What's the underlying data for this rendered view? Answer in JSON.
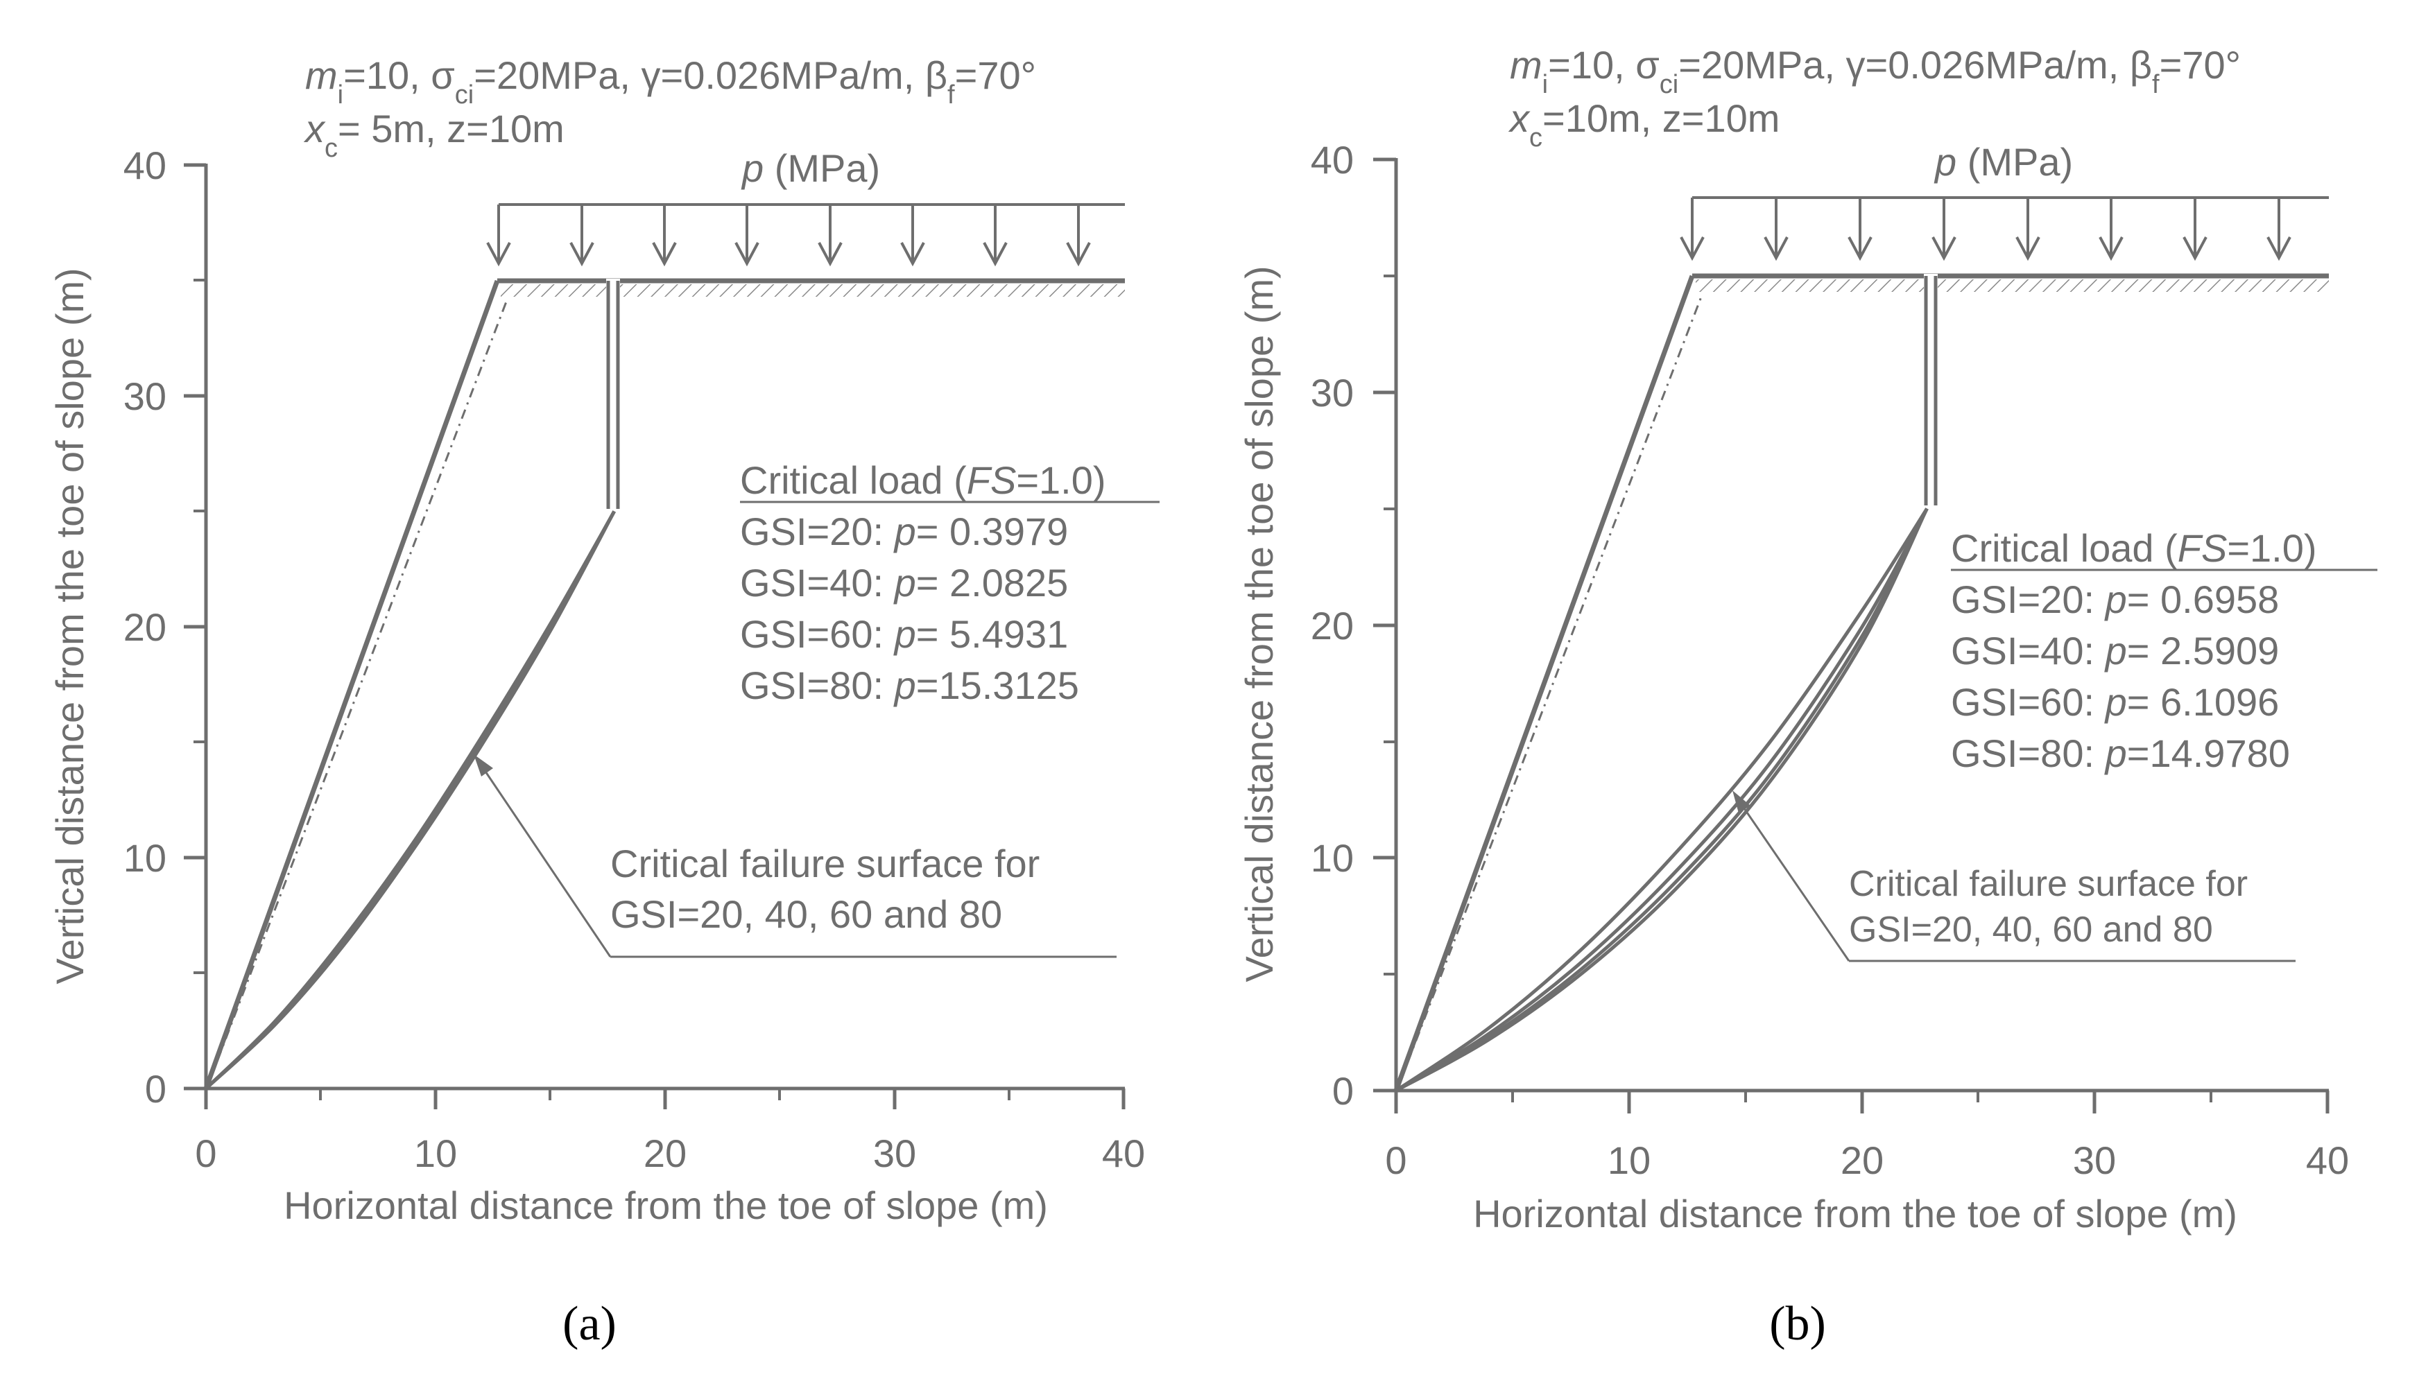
{
  "colors": {
    "ink": "#6e6e6e",
    "label": "#000000",
    "background": "#ffffff"
  },
  "chart_data": [
    {
      "panel_label": "(a)",
      "type": "line",
      "params_line1": {
        "m_i": "10",
        "sigma_ci": "20MPa",
        "gamma": "0.026MPa/m",
        "beta_f": "70°"
      },
      "params_line2": {
        "x_c": "5m",
        "z": "10m"
      },
      "load_label": "p (MPa)",
      "xlabel": "Horizontal distance from the toe of slope (m)",
      "ylabel": "Vertical distance from the toe of slope (m)",
      "xlim": [
        0,
        40
      ],
      "ylim": [
        0,
        40
      ],
      "xticks": [
        "0",
        "10",
        "20",
        "30",
        "40"
      ],
      "yticks": [
        "0",
        "10",
        "20",
        "30",
        "40"
      ],
      "slope": {
        "toe": [
          0,
          0
        ],
        "crest": [
          12.7,
          35
        ],
        "ground_end_x": 40
      },
      "crack": {
        "x": 17.8,
        "top_y": 35,
        "bottom_y": 25
      },
      "load_arrows_x": [
        12.7,
        16.3,
        19.9,
        23.5,
        27.1,
        30.7,
        34.3,
        37.9
      ],
      "load_line_y": 38.2,
      "critical_load": {
        "title": "Critical load (FS=1.0)",
        "rows": [
          {
            "gsi": "20",
            "p": "0.3979"
          },
          {
            "gsi": "40",
            "p": "2.0825"
          },
          {
            "gsi": "60",
            "p": "5.4931"
          },
          {
            "gsi": "80",
            "p": "15.3125"
          }
        ]
      },
      "annotation": {
        "line1": "Critical failure surface for",
        "line2": "GSI=20, 40, 60 and 80",
        "arrow_tip": [
          11.8,
          14.2
        ]
      },
      "series": [
        {
          "name": "GSI=20",
          "x": [
            0,
            3,
            6,
            9,
            12,
            15,
            17.8
          ],
          "y": [
            0,
            2.9,
            6.5,
            10.6,
            15.2,
            20.1,
            25
          ]
        },
        {
          "name": "GSI=40",
          "x": [
            0,
            3,
            6,
            9,
            12,
            15,
            17.8
          ],
          "y": [
            0,
            2.85,
            6.4,
            10.5,
            15.05,
            20,
            25
          ]
        },
        {
          "name": "GSI=60",
          "x": [
            0,
            3,
            6,
            9,
            12,
            15,
            17.8
          ],
          "y": [
            0,
            2.8,
            6.3,
            10.4,
            14.95,
            19.9,
            25
          ]
        },
        {
          "name": "GSI=80",
          "x": [
            0,
            3,
            6,
            9,
            12,
            15,
            17.8
          ],
          "y": [
            0,
            2.75,
            6.2,
            10.3,
            14.85,
            19.8,
            25
          ]
        }
      ]
    },
    {
      "panel_label": "(b)",
      "type": "line",
      "params_line1": {
        "m_i": "10",
        "sigma_ci": "20MPa",
        "gamma": "0.026MPa/m",
        "beta_f": "70°"
      },
      "params_line2": {
        "x_c": "10m",
        "z": "10m"
      },
      "load_label": "p (MPa)",
      "xlabel": "Horizontal distance from the toe of slope (m)",
      "ylabel": "Vertical distance from the toe of slope (m)",
      "xlim": [
        0,
        40
      ],
      "ylim": [
        0,
        40
      ],
      "xticks": [
        "0",
        "10",
        "20",
        "30",
        "40"
      ],
      "yticks": [
        "0",
        "10",
        "20",
        "30",
        "40"
      ],
      "slope": {
        "toe": [
          0,
          0
        ],
        "crest": [
          12.7,
          35
        ],
        "ground_end_x": 40
      },
      "crack": {
        "x": 22.8,
        "top_y": 35,
        "bottom_y": 25
      },
      "load_arrows_x": [
        12.7,
        16.3,
        19.9,
        23.5,
        27.1,
        30.7,
        34.3,
        37.9
      ],
      "load_line_y": 38.3,
      "critical_load": {
        "title": "Critical load (FS=1.0)",
        "rows": [
          {
            "gsi": "20",
            "p": "0.6958"
          },
          {
            "gsi": "40",
            "p": "2.5909"
          },
          {
            "gsi": "60",
            "p": "6.1096"
          },
          {
            "gsi": "80",
            "p": "14.9780"
          }
        ]
      },
      "annotation": {
        "line1": "Critical failure surface for",
        "line2": "GSI=20, 40, 60 and 80",
        "arrow_tip": [
          14.5,
          12.5
        ]
      },
      "series": [
        {
          "name": "GSI=20",
          "x": [
            0,
            4,
            8,
            12,
            16,
            20,
            22.8
          ],
          "y": [
            0,
            2.7,
            6.1,
            10.2,
            14.9,
            20.6,
            25
          ]
        },
        {
          "name": "GSI=40",
          "x": [
            0,
            4,
            8,
            12,
            16,
            20,
            22.8
          ],
          "y": [
            0,
            2.45,
            5.55,
            9.4,
            14.0,
            19.9,
            25
          ]
        },
        {
          "name": "GSI=60",
          "x": [
            0,
            4,
            8,
            12,
            16,
            20,
            22.8
          ],
          "y": [
            0,
            2.3,
            5.25,
            8.95,
            13.5,
            19.5,
            25
          ]
        },
        {
          "name": "GSI=80",
          "x": [
            0,
            4,
            8,
            12,
            16,
            20,
            22.8
          ],
          "y": [
            0,
            2.2,
            5.05,
            8.65,
            13.2,
            19.2,
            25
          ]
        }
      ]
    }
  ]
}
